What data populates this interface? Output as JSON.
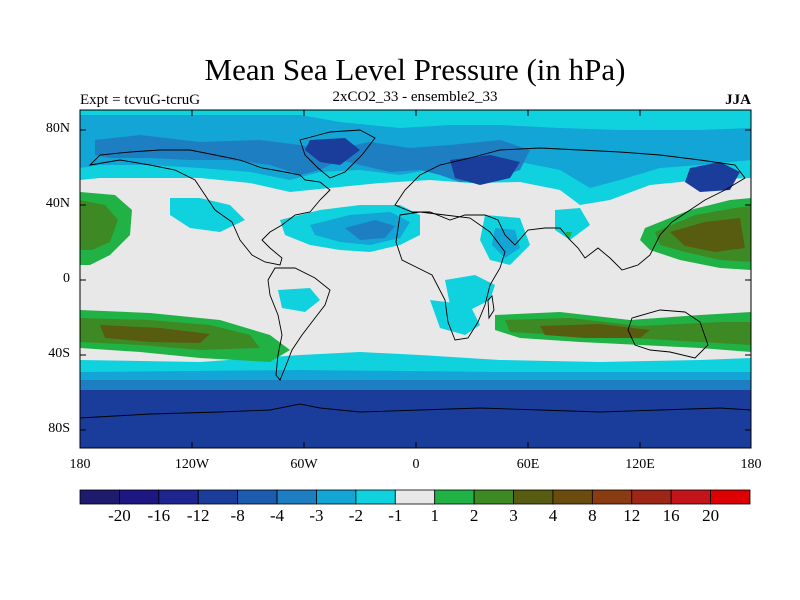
{
  "title": "Mean Sea Level Pressure (in hPa)",
  "left_label": "Expt = tcvuG-tcruG",
  "center_label": "2xCO2_33 - ensemble2_33",
  "right_label": "JJA",
  "lat_labels": [
    "80N",
    "40N",
    "0",
    "40S",
    "80S"
  ],
  "lon_labels": [
    "180",
    "120W",
    "60W",
    "0",
    "60E",
    "120E",
    "180"
  ],
  "colorbar": {
    "colors": [
      "#1e1a6e",
      "#1c1782",
      "#1e2490",
      "#1a3d9c",
      "#1b5cae",
      "#1e7ec2",
      "#12a5d6",
      "#10d2de",
      "#e8e8e8",
      "#21b246",
      "#3d8a25",
      "#575c10",
      "#6c4c0e",
      "#893c12",
      "#9e2616",
      "#c31419",
      "#dd0000"
    ],
    "labels": [
      "-20",
      "-16",
      "-12",
      "-8",
      "-4",
      "-3",
      "-2",
      "-1",
      "1",
      "2",
      "3",
      "4",
      "8",
      "12",
      "16",
      "20"
    ]
  },
  "legend_levels": {
    "neg_strong": "#1a3d9c",
    "neg_mid": "#1e7ec2",
    "neg_light": "#12a5d6",
    "neg_faint": "#10d2de",
    "neutral": "#e8e8e8",
    "pos_light": "#21b246",
    "pos_mid": "#3d8a25",
    "pos_strong": "#575c10"
  }
}
